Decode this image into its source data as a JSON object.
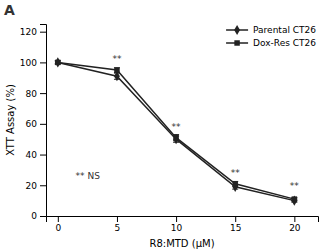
{
  "chart_data": {
    "type": "line",
    "panel_label": "A",
    "xlabel": "R8:MTD (μM)",
    "ylabel": "XTT Assay (%)",
    "x": [
      0,
      5,
      10,
      15,
      20
    ],
    "series": [
      {
        "name": "Parental CT26",
        "color": "#222222",
        "marker": "diamond",
        "values": [
          100,
          91,
          50,
          19,
          10
        ],
        "errors": [
          1,
          2,
          2,
          1.5,
          1
        ]
      },
      {
        "name": "Dox-Res CT26",
        "color": "#222222",
        "marker": "square",
        "values": [
          100,
          95,
          51,
          21,
          11
        ],
        "errors": [
          1,
          1.5,
          2,
          1.5,
          1
        ]
      }
    ],
    "annotations": [
      {
        "text": "**",
        "x": 5,
        "y": 99
      },
      {
        "text": "**",
        "x": 10,
        "y": 55
      },
      {
        "text": "**",
        "x": 15,
        "y": 25
      },
      {
        "text": "**",
        "x": 20,
        "y": 16
      },
      {
        "text": "** NS",
        "x": 1.5,
        "y": 26,
        "align": "left"
      }
    ],
    "xlim": [
      -1,
      22
    ],
    "ylim": [
      0,
      125
    ],
    "xticks": [
      0,
      5,
      10,
      15,
      20
    ],
    "yticks": [
      0,
      20,
      40,
      60,
      80,
      100,
      120
    ],
    "grid": false,
    "legend": "upper right"
  }
}
